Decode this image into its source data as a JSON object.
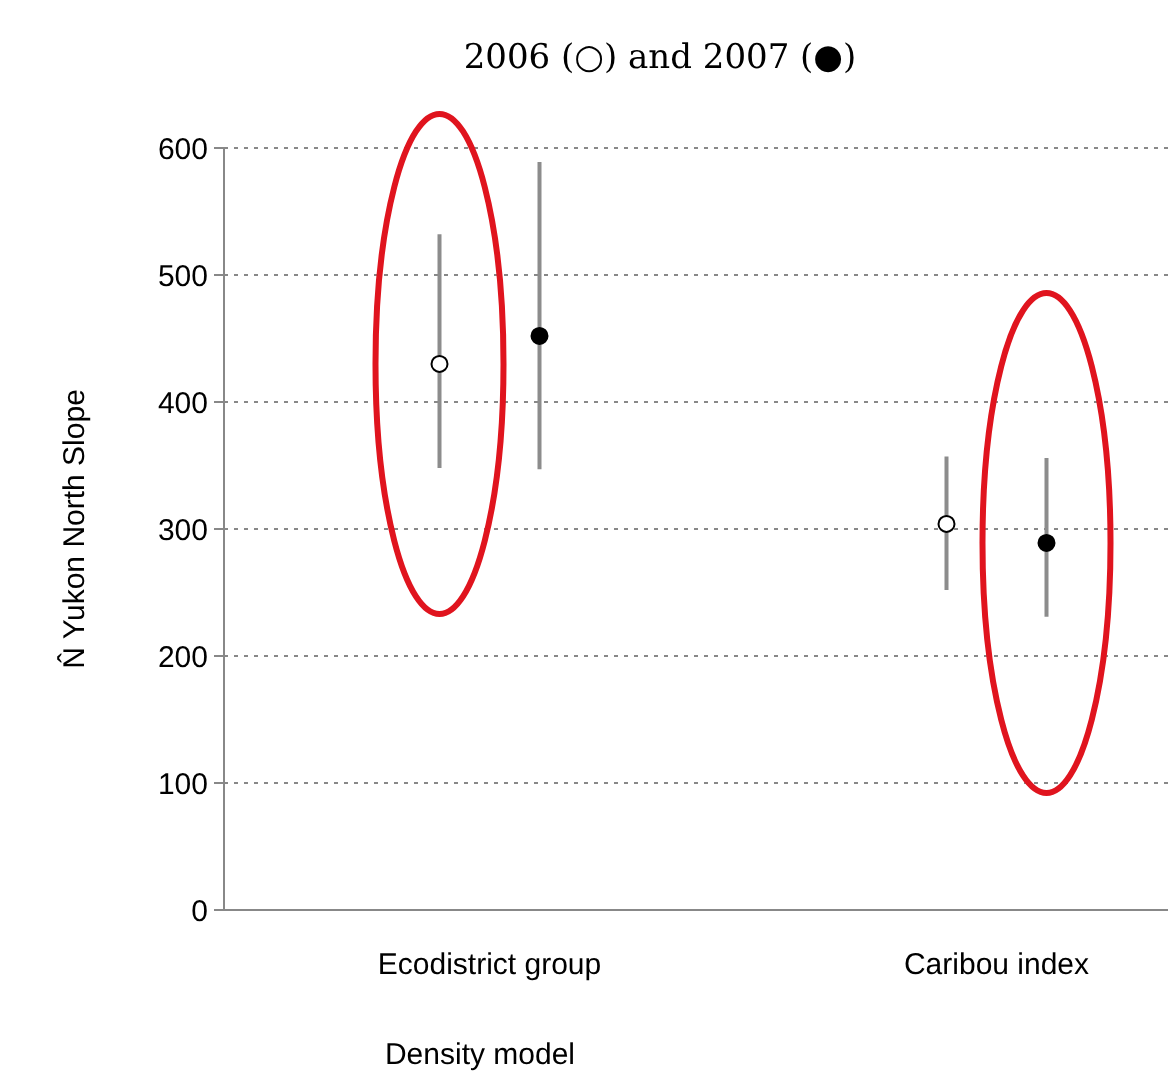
{
  "chart_data": {
    "type": "scatter",
    "title": "2006 (○) and 2007 (●)",
    "xlabel": "Density model",
    "ylabel": "N̂ Yukon North Slope",
    "categories": [
      "Ecodistrict group",
      "Caribou index"
    ],
    "series": [
      {
        "color": "#ffffff",
        "values": [
          430,
          304
        ],
        "errors": [
          [
            348,
            532
          ],
          [
            252,
            357
          ]
        ]
      },
      {
        "color": "#000000",
        "values": [
          452,
          289
        ],
        "errors": [
          [
            347,
            589
          ],
          [
            231,
            356
          ]
        ]
      }
    ],
    "ylim": [
      0,
      600
    ],
    "yticks": [
      0,
      100,
      200,
      300,
      400,
      500,
      600
    ],
    "grid": "y",
    "marker": "circle"
  }
}
